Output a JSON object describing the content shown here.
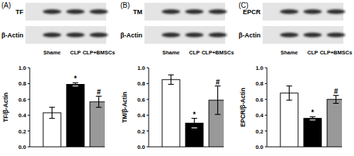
{
  "chart_data": [
    {
      "type": "bar",
      "title": "(A)",
      "y_label": "TF/β-Actin",
      "blot_labels": [
        "TF",
        "β-Actin"
      ],
      "categories": [
        "Shame",
        "CLP",
        "CLP+BMSCs"
      ],
      "values": [
        0.43,
        0.79,
        0.57
      ],
      "errors": [
        0.07,
        0.02,
        0.07
      ],
      "annotations": [
        null,
        "*",
        "#"
      ],
      "colors": [
        "#ffffff",
        "#000000",
        "#999999"
      ],
      "ylim": [
        0,
        1
      ],
      "yticks": [
        {
          "value": 0,
          "label": "0.0"
        },
        0.2,
        0.4,
        0.6,
        0.8,
        {
          "value": 1,
          "label": "1.0"
        }
      ]
    },
    {
      "type": "bar",
      "title": "(B)",
      "y_label": "TM/β-Actin",
      "blot_labels": [
        "TM",
        "β-Actin"
      ],
      "categories": [
        "Shame",
        "CLP",
        "CLP+BMSCs"
      ],
      "values": [
        0.85,
        0.3,
        0.59
      ],
      "errors": [
        0.06,
        0.06,
        0.18
      ],
      "annotations": [
        null,
        "*",
        "#"
      ],
      "colors": [
        "#ffffff",
        "#000000",
        "#999999"
      ],
      "ylim": [
        0,
        1
      ],
      "yticks": [
        {
          "value": 0,
          "label": "0.0"
        },
        0.2,
        0.4,
        0.6,
        0.8,
        {
          "value": 1,
          "label": "1.0"
        }
      ]
    },
    {
      "type": "bar",
      "title": "(C)",
      "y_label": "EPCR/β-Actin",
      "blot_labels": [
        "EPCR",
        "β-Actin"
      ],
      "categories": [
        "Shame",
        "CLP",
        "CLP+BMSCs"
      ],
      "values": [
        0.68,
        0.36,
        0.6
      ],
      "errors": [
        0.09,
        0.02,
        0.05
      ],
      "annotations": [
        null,
        "*",
        "#"
      ],
      "colors": [
        "#ffffff",
        "#000000",
        "#999999"
      ],
      "ylim": [
        0,
        1
      ],
      "yticks": [
        {
          "value": 0,
          "label": "0.0"
        },
        0.2,
        0.4,
        0.6,
        0.8,
        {
          "value": 1,
          "label": "1.0"
        }
      ]
    }
  ]
}
